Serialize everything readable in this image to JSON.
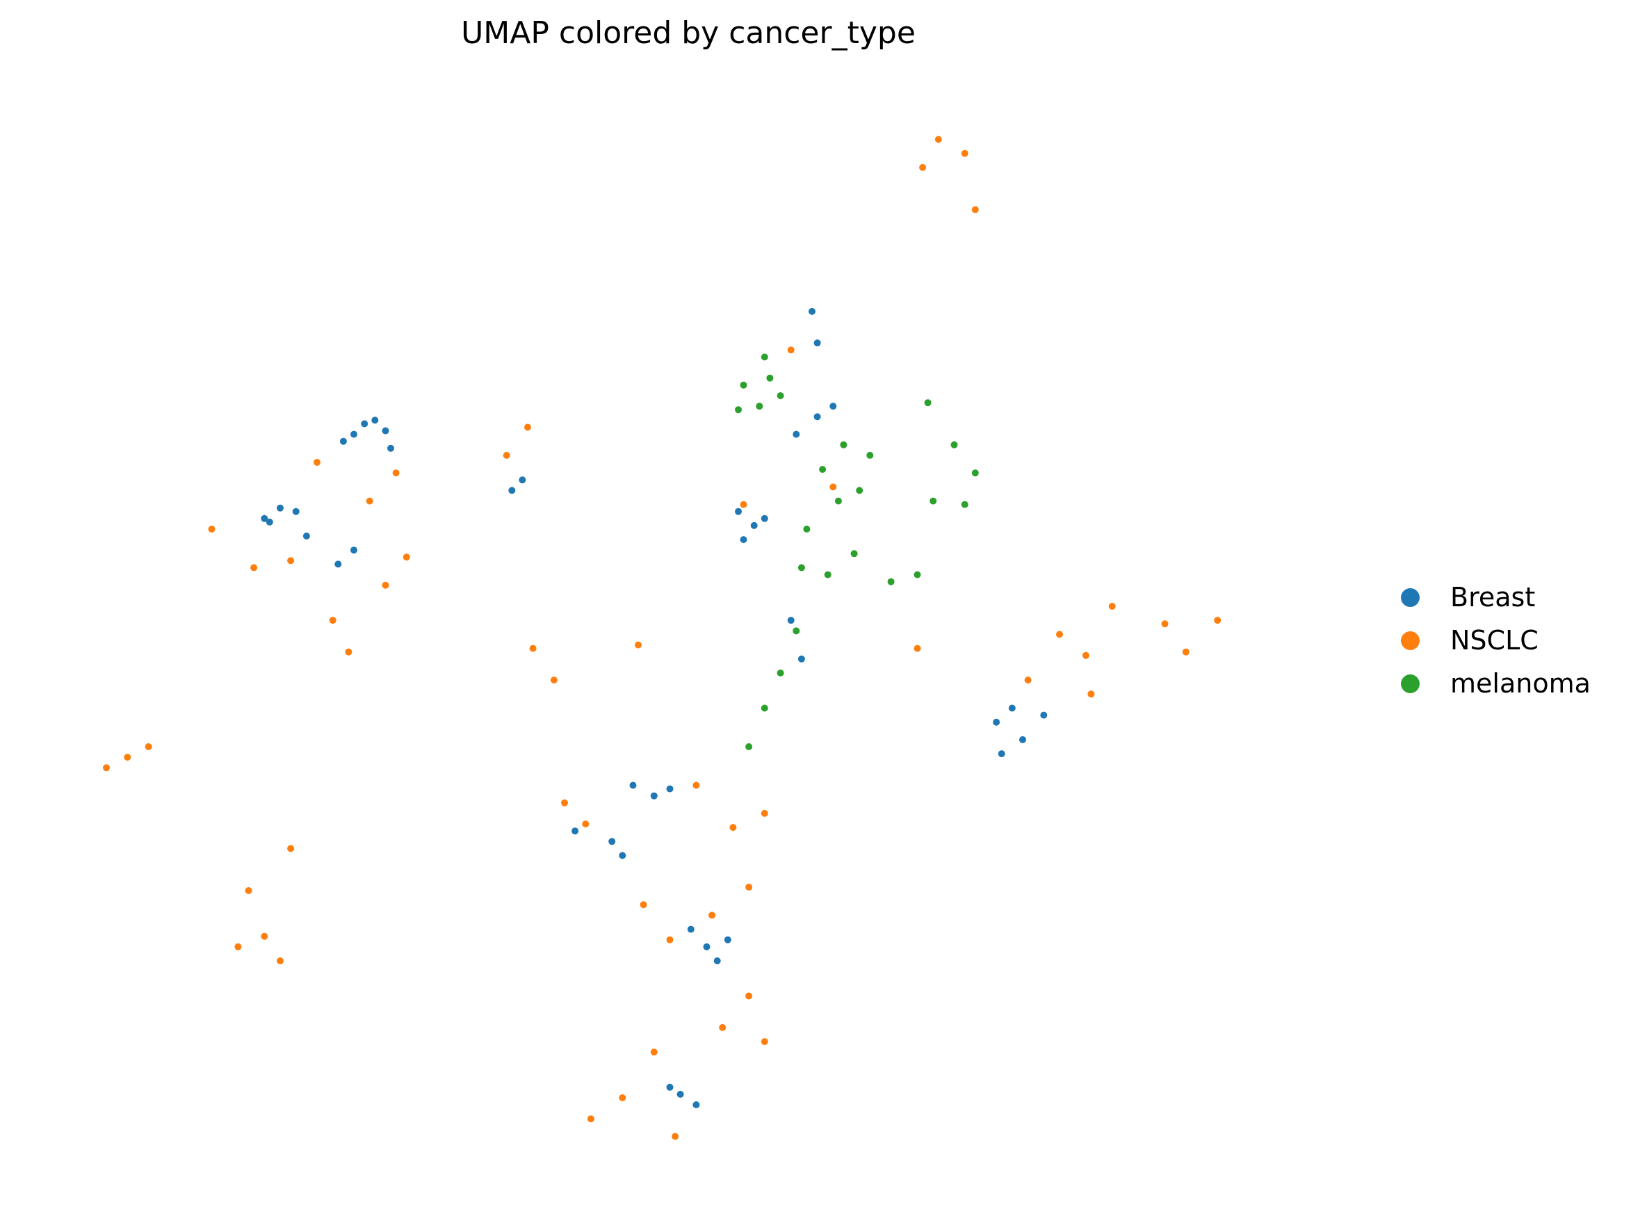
{
  "chart_data": {
    "type": "scatter",
    "title": "UMAP colored by cancer_type",
    "xlabel": "",
    "ylabel": "",
    "axes_visible": false,
    "grid": false,
    "legend_placement": "right",
    "series": [
      {
        "name": "Breast",
        "color": "#1f77b4",
        "points": [
          [
            -4.6,
            6.6
          ],
          [
            -4.2,
            7.0
          ],
          [
            -4.4,
            6.9
          ],
          [
            -4.0,
            6.7
          ],
          [
            -4.8,
            6.4
          ],
          [
            -3.9,
            6.2
          ],
          [
            -6.3,
            4.2
          ],
          [
            -6.0,
            4.5
          ],
          [
            -6.2,
            4.1
          ],
          [
            -5.7,
            4.4
          ],
          [
            -5.5,
            3.7
          ],
          [
            -4.9,
            2.9
          ],
          [
            -4.6,
            3.3
          ],
          [
            -1.6,
            5.0
          ],
          [
            -1.4,
            5.3
          ],
          [
            2.7,
            4.4
          ],
          [
            3.0,
            4.0
          ],
          [
            3.2,
            4.2
          ],
          [
            2.8,
            3.6
          ],
          [
            3.8,
            6.6
          ],
          [
            4.2,
            7.1
          ],
          [
            4.5,
            7.4
          ],
          [
            4.1,
            10.1
          ],
          [
            4.2,
            9.2
          ],
          [
            7.6,
            -1.6
          ],
          [
            7.9,
            -1.2
          ],
          [
            8.1,
            -2.1
          ],
          [
            7.7,
            -2.5
          ],
          [
            8.5,
            -1.4
          ],
          [
            1.1,
            -3.7
          ],
          [
            0.7,
            -3.4
          ],
          [
            1.4,
            -3.5
          ],
          [
            2.1,
            -8.0
          ],
          [
            2.3,
            -8.4
          ],
          [
            2.5,
            -7.8
          ],
          [
            1.8,
            -7.5
          ],
          [
            1.6,
            -12.2
          ],
          [
            1.9,
            -12.5
          ],
          [
            1.4,
            -12.0
          ],
          [
            3.9,
            0.2
          ],
          [
            3.7,
            1.3
          ],
          [
            0.5,
            -5.4
          ],
          [
            0.3,
            -5.0
          ],
          [
            -0.4,
            -4.7
          ]
        ]
      },
      {
        "name": "NSCLC",
        "color": "#ff7f0e",
        "points": [
          [
            -5.3,
            5.8
          ],
          [
            -4.3,
            4.7
          ],
          [
            -3.8,
            5.5
          ],
          [
            -5.8,
            3.0
          ],
          [
            -6.5,
            2.8
          ],
          [
            -4.0,
            2.3
          ],
          [
            -3.6,
            3.1
          ],
          [
            -5.0,
            1.3
          ],
          [
            -7.3,
            3.9
          ],
          [
            -4.7,
            0.4
          ],
          [
            -8.9,
            -2.6
          ],
          [
            -9.3,
            -2.9
          ],
          [
            -8.5,
            -2.3
          ],
          [
            -6.8,
            -8.0
          ],
          [
            -6.3,
            -7.7
          ],
          [
            -6.0,
            -8.4
          ],
          [
            -6.6,
            -6.4
          ],
          [
            -5.8,
            -5.2
          ],
          [
            -1.2,
            0.5
          ],
          [
            -0.8,
            -0.4
          ],
          [
            0.8,
            0.6
          ],
          [
            -0.2,
            -4.5
          ],
          [
            -0.6,
            -3.9
          ],
          [
            1.9,
            -3.4
          ],
          [
            2.6,
            -4.6
          ],
          [
            3.2,
            -4.2
          ],
          [
            2.9,
            -6.3
          ],
          [
            2.2,
            -7.1
          ],
          [
            0.9,
            -6.8
          ],
          [
            1.4,
            -7.8
          ],
          [
            2.9,
            -9.4
          ],
          [
            3.2,
            -10.7
          ],
          [
            2.4,
            -10.3
          ],
          [
            1.1,
            -11.0
          ],
          [
            0.5,
            -12.3
          ],
          [
            1.5,
            -13.4
          ],
          [
            -0.1,
            -12.9
          ],
          [
            3.7,
            9.0
          ],
          [
            4.5,
            5.1
          ],
          [
            6.5,
            15.0
          ],
          [
            7.0,
            14.6
          ],
          [
            6.2,
            14.2
          ],
          [
            7.2,
            13.0
          ],
          [
            2.8,
            4.6
          ],
          [
            8.8,
            0.9
          ],
          [
            9.3,
            0.3
          ],
          [
            8.2,
            -0.4
          ],
          [
            6.1,
            0.5
          ],
          [
            9.8,
            1.7
          ],
          [
            10.8,
            1.2
          ],
          [
            11.2,
            0.4
          ],
          [
            11.8,
            1.3
          ],
          [
            9.4,
            -0.8
          ],
          [
            -1.7,
            6.0
          ],
          [
            -1.3,
            6.8
          ]
        ]
      },
      {
        "name": "melanoma",
        "color": "#2ca02c",
        "points": [
          [
            2.8,
            8.0
          ],
          [
            3.1,
            7.4
          ],
          [
            3.3,
            8.2
          ],
          [
            3.5,
            7.7
          ],
          [
            2.7,
            7.3
          ],
          [
            3.2,
            8.8
          ],
          [
            4.3,
            5.6
          ],
          [
            4.7,
            6.3
          ],
          [
            5.2,
            6.0
          ],
          [
            5.0,
            5.0
          ],
          [
            4.6,
            4.7
          ],
          [
            4.9,
            3.2
          ],
          [
            4.4,
            2.6
          ],
          [
            3.9,
            2.8
          ],
          [
            5.6,
            2.4
          ],
          [
            6.1,
            2.6
          ],
          [
            6.4,
            4.7
          ],
          [
            7.2,
            5.5
          ],
          [
            7.0,
            4.6
          ],
          [
            6.8,
            6.3
          ],
          [
            6.3,
            7.5
          ],
          [
            3.8,
            1.0
          ],
          [
            3.5,
            -0.2
          ],
          [
            3.2,
            -1.2
          ],
          [
            2.9,
            -2.3
          ],
          [
            4.0,
            3.9
          ]
        ]
      }
    ]
  },
  "legend": {
    "items": [
      {
        "label": "Breast",
        "color": "#1f77b4"
      },
      {
        "label": "NSCLC",
        "color": "#ff7f0e"
      },
      {
        "label": "melanoma",
        "color": "#2ca02c"
      }
    ]
  }
}
